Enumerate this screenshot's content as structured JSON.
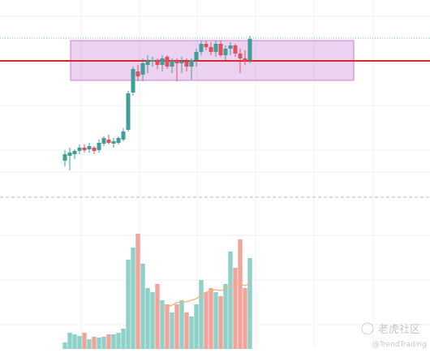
{
  "chart_data": [
    {
      "type": "candlestick",
      "ylim": [
        0,
        240
      ],
      "up_color": "#3f9f98",
      "down_color": "#e0505f",
      "open": [
        42,
        48,
        50,
        54,
        58,
        56,
        58,
        55,
        63,
        68,
        63,
        64,
        68,
        80,
        126,
        152,
        148,
        160,
        164,
        165,
        160,
        170,
        158,
        165,
        162,
        164,
        158,
        166,
        176,
        186,
        182,
        176,
        186,
        172,
        180,
        184,
        174,
        168,
        166
      ],
      "high": [
        55,
        58,
        56,
        62,
        62,
        64,
        60,
        68,
        72,
        74,
        70,
        72,
        82,
        128,
        158,
        160,
        168,
        172,
        170,
        168,
        172,
        172,
        168,
        168,
        170,
        168,
        168,
        180,
        190,
        190,
        188,
        190,
        190,
        184,
        188,
        186,
        180,
        178,
        196
      ],
      "low": [
        35,
        30,
        44,
        50,
        52,
        52,
        50,
        52,
        60,
        62,
        58,
        62,
        66,
        78,
        122,
        140,
        140,
        150,
        158,
        155,
        152,
        155,
        150,
        140,
        150,
        152,
        142,
        158,
        172,
        178,
        172,
        170,
        170,
        166,
        172,
        170,
        150,
        160,
        162
      ],
      "close": [
        50,
        52,
        54,
        58,
        55,
        60,
        54,
        64,
        70,
        64,
        66,
        70,
        78,
        125,
        155,
        146,
        162,
        165,
        166,
        160,
        168,
        158,
        165,
        162,
        164,
        158,
        166,
        176,
        186,
        182,
        176,
        186,
        172,
        180,
        184,
        174,
        168,
        165,
        192
      ],
      "hline": {
        "value": 165,
        "color": "#d42a2a"
      },
      "dotted_line": {
        "value": 193,
        "color": "#5cb8b0"
      },
      "range_box": {
        "low": 141,
        "high": 190,
        "color": "#c77fd6"
      }
    },
    {
      "type": "bar",
      "ylim": [
        0,
        185
      ],
      "up_color": "#8fd1c9",
      "down_color": "#f2a39c",
      "values": [
        8,
        20,
        18,
        16,
        20,
        12,
        15,
        14,
        15,
        18,
        18,
        20,
        25,
        110,
        125,
        142,
        105,
        75,
        70,
        80,
        60,
        55,
        45,
        55,
        60,
        45,
        40,
        55,
        85,
        70,
        75,
        70,
        65,
        80,
        120,
        100,
        135,
        75,
        112
      ],
      "ma": {
        "color": "#f0b27a",
        "values": [
          null,
          null,
          null,
          null,
          null,
          null,
          null,
          null,
          null,
          null,
          null,
          null,
          null,
          null,
          null,
          null,
          null,
          null,
          null,
          null,
          50,
          52,
          54,
          57,
          58,
          58,
          60,
          62,
          66,
          70,
          72,
          73,
          72,
          74,
          78,
          78,
          80,
          78,
          80
        ]
      }
    }
  ],
  "watermark": {
    "brand": "老虎社区",
    "handle": "@TrendTrading"
  }
}
